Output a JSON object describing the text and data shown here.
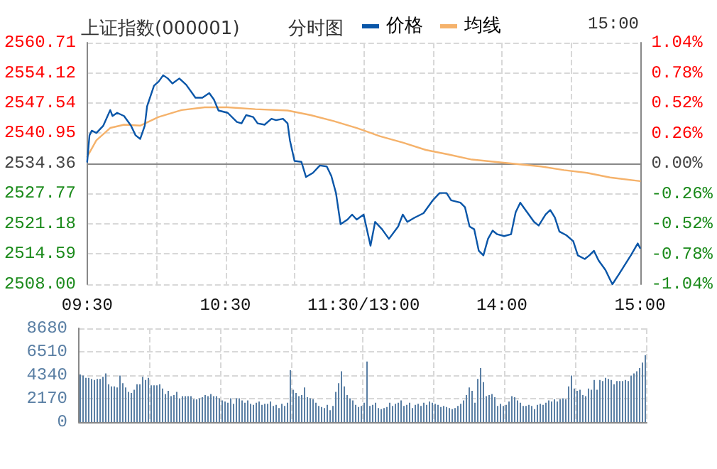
{
  "chart_data": [
    {
      "type": "line",
      "title": "上证指数(000001)",
      "subtitle": "分时图",
      "annotations": [
        "15:00"
      ],
      "legend": "top",
      "grid": true,
      "marker": "none",
      "line_style": "solid",
      "categories": [
        "09:30",
        null,
        null,
        null,
        null,
        null,
        null,
        null,
        null,
        null,
        null,
        null,
        null,
        null,
        null,
        null,
        null,
        null,
        null,
        null,
        null,
        null,
        null,
        null,
        null,
        null,
        null,
        null,
        null,
        null,
        null,
        null,
        null,
        null,
        null,
        null,
        null,
        null,
        null,
        null,
        null,
        null,
        null,
        null,
        null,
        null,
        null,
        null,
        null,
        null,
        null,
        null,
        null,
        null,
        null,
        null,
        null,
        null,
        null,
        null,
        "10:30",
        null,
        null,
        null,
        null,
        null,
        null,
        null,
        null,
        null,
        null,
        null,
        null,
        null,
        null,
        null,
        null,
        null,
        null,
        null,
        null,
        null,
        null,
        null,
        null,
        null,
        null,
        null,
        null,
        null,
        null,
        null,
        null,
        null,
        null,
        null,
        null,
        null,
        null,
        null,
        null,
        null,
        null,
        null,
        null,
        null,
        null,
        null,
        null,
        null,
        null,
        null,
        null,
        null,
        null,
        null,
        null,
        null,
        null,
        null,
        "11:30/13:00",
        null,
        null,
        null,
        null,
        null,
        null,
        null,
        null,
        null,
        null,
        null,
        null,
        null,
        null,
        null,
        null,
        null,
        null,
        null,
        null,
        null,
        null,
        null,
        null,
        null,
        null,
        null,
        null,
        null,
        null,
        null,
        null,
        null,
        null,
        null,
        null,
        null,
        null,
        null,
        null,
        null,
        null,
        null,
        null,
        null,
        null,
        null,
        null,
        null,
        null,
        null,
        null,
        null,
        null,
        null,
        null,
        null,
        null,
        null,
        "14:00",
        null,
        null,
        null,
        null,
        null,
        null,
        null,
        null,
        null,
        null,
        null,
        null,
        null,
        null,
        null,
        null,
        null,
        null,
        null,
        null,
        null,
        null,
        null,
        null,
        null,
        null,
        null,
        null,
        null,
        null,
        null,
        null,
        null,
        null,
        null,
        null,
        null,
        null,
        null,
        null,
        null,
        null,
        null,
        null,
        null,
        null,
        null,
        null,
        null,
        null,
        null,
        null,
        null,
        null,
        null,
        null,
        null,
        null,
        null,
        "15:00"
      ],
      "ylim": [
        2508,
        2560.71
      ],
      "yticks": [
        {
          "value": 2508,
          "label": "2508.00"
        },
        2514.59,
        2521.18,
        2527.77,
        2534.36,
        2540.95,
        2547.54,
        2554.12,
        2560.71
      ],
      "y2lim": [
        -1.04,
        1.04
      ],
      "y2ticks": [
        {
          "value": -1.04,
          "label": "-1.04%"
        },
        {
          "value": -0.78,
          "label": "-0.78%"
        },
        {
          "value": -0.52,
          "label": "-0.52%"
        },
        {
          "value": -0.26,
          "label": "-0.26%"
        },
        {
          "value": 0,
          "label": "0.00%"
        },
        {
          "value": 0.26,
          "label": "0.26%"
        },
        {
          "value": 0.52,
          "label": "0.52%"
        },
        {
          "value": 0.78,
          "label": "0.78%"
        },
        {
          "value": 1.04,
          "label": "1.04%"
        }
      ],
      "series": [
        {
          "name": "价格",
          "color": "#0a56a8",
          "values": [
            2534.7,
            2540.5,
            2541.5,
            null,
            2541.0,
            null,
            null,
            2542.6,
            null,
            null,
            2546.0,
            2544.7,
            null,
            2545.4,
            null,
            null,
            2544.7,
            null,
            null,
            2542.6,
            null,
            2540.5,
            null,
            2539.7,
            null,
            2542.6,
            2546.8,
            null,
            null,
            2551.3,
            null,
            2552.2,
            null,
            2553.6,
            null,
            2552.9,
            null,
            2551.8,
            null,
            null,
            2552.9,
            null,
            null,
            2551.5,
            null,
            null,
            null,
            2548.7,
            null,
            null,
            2548.7,
            null,
            null,
            2549.7,
            null,
            2548.3,
            null,
            2545.9,
            null,
            null,
            null,
            2545.4,
            null,
            null,
            null,
            2543.4,
            null,
            2543.1,
            null,
            2544.9,
            null,
            null,
            2544.5,
            null,
            2543.1,
            null,
            null,
            2542.8,
            null,
            null,
            2544.1,
            null,
            2543.8,
            null,
            null,
            2544.1,
            null,
            2543.1,
            2539.4,
            null,
            2534.9,
            null,
            null,
            2534.7,
            null,
            2531.4,
            null,
            null,
            2532.3,
            null,
            null,
            2533.9,
            null,
            null,
            2533.7,
            null,
            2531.6,
            null,
            2527.9,
            null,
            2521.1,
            null,
            null,
            2522.1,
            null,
            2523.2,
            null,
            2522.1,
            null,
            null,
            2523.2,
            null,
            null,
            2516.4,
            null,
            2521.6,
            null,
            null,
            2520.0,
            null,
            null,
            2517.9,
            null,
            null,
            null,
            2520.6,
            null,
            2523.2,
            null,
            2521.6,
            null,
            null,
            2522.5,
            null,
            null,
            null,
            2523.5,
            null,
            null,
            null,
            2526.3,
            null,
            null,
            2527.9,
            null,
            null,
            2527.9,
            null,
            2526.3,
            null,
            null,
            null,
            2525.8,
            null,
            2524.8,
            null,
            2520.6,
            null,
            2520.0,
            null,
            2515.3,
            null,
            2514.3,
            null,
            2517.9,
            null,
            2519.7,
            null,
            2518.9,
            null,
            null,
            2518.5,
            null,
            null,
            2518.9,
            null,
            2523.7,
            null,
            2525.8,
            null,
            null,
            2523.7,
            null,
            null,
            2521.6,
            null,
            2520.8,
            null,
            null,
            2523.2,
            null,
            2524.2,
            null,
            2522.6,
            null,
            2519.5,
            null,
            null,
            2518.7,
            null,
            null,
            2517.4,
            null,
            2514.3,
            null,
            null,
            2513.5,
            null,
            2514.3,
            null,
            2515.3,
            null,
            2513.2,
            null,
            null,
            2511.1,
            null,
            2509.0,
            2508.0,
            null,
            null,
            2510.3,
            null,
            null,
            2512.7,
            null,
            2514.3,
            null,
            null,
            2516.9,
            2515.9
          ]
        },
        {
          "name": "均线",
          "color": "#f5b26b",
          "values": [
            2535.8,
            null,
            null,
            null,
            2539.4,
            null,
            null,
            null,
            null,
            null,
            2542.1,
            null,
            null,
            null,
            null,
            null,
            2542.8,
            null,
            null,
            null,
            null,
            null,
            null,
            2542.6,
            null,
            null,
            null,
            null,
            null,
            null,
            null,
            2544.5,
            null,
            null,
            null,
            null,
            null,
            null,
            null,
            null,
            null,
            2546.0,
            null,
            null,
            null,
            null,
            null,
            null,
            null,
            null,
            null,
            2546.6,
            null,
            null,
            null,
            null,
            null,
            null,
            null,
            null,
            null,
            2546.6,
            null,
            null,
            null,
            null,
            null,
            null,
            null,
            null,
            null,
            null,
            null,
            2546.2,
            null,
            null,
            null,
            null,
            null,
            null,
            null,
            null,
            null,
            null,
            null,
            null,
            null,
            2545.9,
            null,
            null,
            null,
            null,
            null,
            null,
            null,
            null,
            null,
            2544.9,
            null,
            null,
            null,
            null,
            null,
            null,
            null,
            null,
            null,
            2543.6,
            null,
            null,
            null,
            null,
            null,
            null,
            null,
            null,
            null,
            2542.1,
            null,
            null,
            null,
            null,
            null,
            null,
            null,
            null,
            null,
            2540.3,
            null,
            null,
            null,
            null,
            null,
            null,
            null,
            null,
            null,
            2538.9,
            null,
            null,
            null,
            null,
            null,
            null,
            null,
            null,
            null,
            2537.3,
            null,
            null,
            null,
            null,
            null,
            null,
            null,
            null,
            null,
            2536.3,
            null,
            null,
            null,
            null,
            null,
            null,
            null,
            null,
            null,
            2535.2,
            null,
            null,
            null,
            null,
            null,
            null,
            null,
            null,
            null,
            2534.7,
            null,
            null,
            null,
            null,
            null,
            null,
            null,
            null,
            null,
            2534.2,
            null,
            null,
            null,
            null,
            null,
            null,
            null,
            null,
            null,
            2533.7,
            null,
            null,
            null,
            null,
            null,
            null,
            null,
            null,
            null,
            2532.9,
            null,
            null,
            null,
            null,
            null,
            null,
            null,
            null,
            null,
            2532.3,
            null,
            null,
            null,
            null,
            null,
            null,
            null,
            null,
            null,
            2531.3,
            null,
            null,
            null,
            null,
            null,
            null,
            null,
            null,
            null,
            null,
            null,
            null,
            2530.5
          ]
        }
      ]
    },
    {
      "type": "bar",
      "color": "#5a7fa4",
      "grid": true,
      "tick_labels": "y",
      "ylim": [
        0,
        8680
      ],
      "yticks": [
        0,
        2170,
        4340,
        6510,
        8680
      ],
      "categories": [
        null,
        null,
        null,
        null,
        null,
        null,
        null,
        null,
        null,
        null,
        null,
        null,
        null,
        null,
        null,
        null,
        null,
        null,
        null,
        null,
        null,
        null,
        null,
        null,
        null,
        null,
        null,
        null,
        null,
        null,
        null,
        null,
        null,
        null,
        null,
        null,
        null,
        null,
        null,
        null,
        null,
        null,
        null,
        null,
        null,
        null,
        null,
        null,
        null,
        null,
        null,
        null,
        null,
        null,
        null,
        null,
        null,
        null,
        null,
        null,
        null,
        null,
        null,
        null,
        null,
        null,
        null,
        null,
        null,
        null,
        null,
        null,
        null,
        null,
        null,
        null,
        null,
        null,
        null,
        null,
        null,
        null,
        null,
        null,
        null,
        null,
        null,
        null,
        null,
        null,
        null,
        null,
        null,
        null,
        null,
        null,
        null,
        null,
        null,
        null,
        null,
        null,
        null,
        null,
        null,
        null,
        null,
        null,
        null,
        null,
        null,
        null,
        null,
        null,
        null,
        null,
        null,
        null,
        null,
        null,
        null,
        null,
        null,
        null,
        null,
        null,
        null,
        null,
        null,
        null,
        null,
        null,
        null,
        null,
        null,
        null,
        null,
        null,
        null,
        null,
        null,
        null,
        null,
        null,
        null,
        null,
        null,
        null,
        null,
        null,
        null,
        null,
        null,
        null,
        null,
        null,
        null,
        null,
        null,
        null,
        null,
        null,
        null,
        null,
        null,
        null,
        null,
        null,
        null,
        null,
        null,
        null,
        null,
        null,
        null,
        null,
        null,
        null,
        null,
        null,
        null,
        null,
        null,
        null,
        null,
        null,
        null,
        null,
        null,
        null,
        null,
        null,
        null,
        null,
        null,
        null,
        null,
        null,
        null,
        null
      ],
      "values": [
        4400,
        4300,
        4100,
        4100,
        4000,
        3900,
        4000,
        4000,
        4200,
        4500,
        3500,
        3300,
        3300,
        3200,
        4300,
        3600,
        3200,
        2800,
        2700,
        3000,
        3500,
        3500,
        4200,
        3900,
        4100,
        3400,
        3400,
        3400,
        3500,
        3100,
        2600,
        2900,
        2400,
        2500,
        2800,
        2200,
        2400,
        2400,
        2400,
        2400,
        2100,
        2100,
        2200,
        2300,
        2500,
        2400,
        2600,
        2400,
        2400,
        2200,
        2000,
        1900,
        1800,
        2200,
        1700,
        2200,
        2200,
        2000,
        1800,
        2000,
        1700,
        1600,
        1800,
        1900,
        1600,
        1700,
        1700,
        1900,
        1500,
        1600,
        1300,
        1700,
        1500,
        1800,
        4800,
        3000,
        2700,
        2400,
        2500,
        3200,
        2300,
        2200,
        2100,
        1800,
        1500,
        1400,
        1300,
        1600,
        1100,
        1500,
        2800,
        3600,
        4700,
        3300,
        2500,
        2200,
        2000,
        1600,
        1400,
        1500,
        1800,
        5600,
        1500,
        1600,
        1800,
        1300,
        1200,
        1300,
        1400,
        1800,
        1500,
        1700,
        1800,
        2000,
        1500,
        1600,
        1800,
        1300,
        1600,
        1700,
        1500,
        1800,
        1600,
        1900,
        1800,
        1700,
        1600,
        1400,
        1500,
        1400,
        1300,
        1200,
        1300,
        1500,
        1700,
        2000,
        2500,
        3200,
        2900,
        1800,
        4000,
        5000,
        3700,
        2400,
        2500,
        2600,
        2300,
        1500,
        1700,
        1500,
        1600,
        1900,
        2400,
        2300,
        2000,
        1800,
        1500,
        1500,
        1600,
        1500,
        1200,
        1600,
        1700,
        1600,
        1800,
        2000,
        1900,
        2100,
        1900,
        2100,
        2200,
        2100,
        3300,
        4300,
        3100,
        2900,
        3000,
        2500,
        2400,
        3100,
        3000,
        3900,
        3000,
        3900,
        3800,
        4100,
        4000,
        3900,
        3500,
        3800,
        3800,
        3800,
        3900,
        3800,
        4300,
        4500,
        4700,
        5000,
        5500,
        6200
      ]
    }
  ]
}
